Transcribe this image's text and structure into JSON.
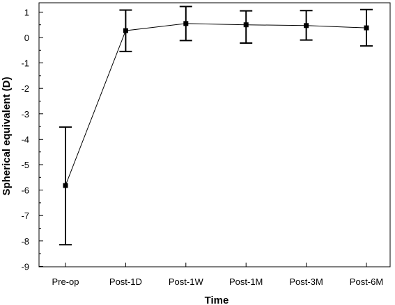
{
  "chart_data": {
    "type": "line",
    "title": "",
    "xlabel": "Time",
    "ylabel": "Spherical equivalent (D)",
    "categories": [
      "Pre-op",
      "Post-1D",
      "Post-1W",
      "Post-1M",
      "Post-3M",
      "Post-6M"
    ],
    "y_ticks": [
      "1",
      "0",
      "-1",
      "-2",
      "-3",
      "-4",
      "-5",
      "-6",
      "-7",
      "-8",
      "-9"
    ],
    "ylim": [
      -9,
      1.3
    ],
    "grid": false,
    "legend": "none",
    "series": [
      {
        "values": [
          -5.82,
          0.27,
          0.55,
          0.5,
          0.47,
          0.38
        ],
        "error_low": [
          -8.15,
          -0.55,
          -0.12,
          -0.22,
          -0.1,
          -0.33
        ],
        "error_high": [
          -3.52,
          1.08,
          1.22,
          1.05,
          1.06,
          1.1
        ]
      }
    ],
    "colors": {
      "line": "#000000",
      "marker": "#000000"
    }
  }
}
